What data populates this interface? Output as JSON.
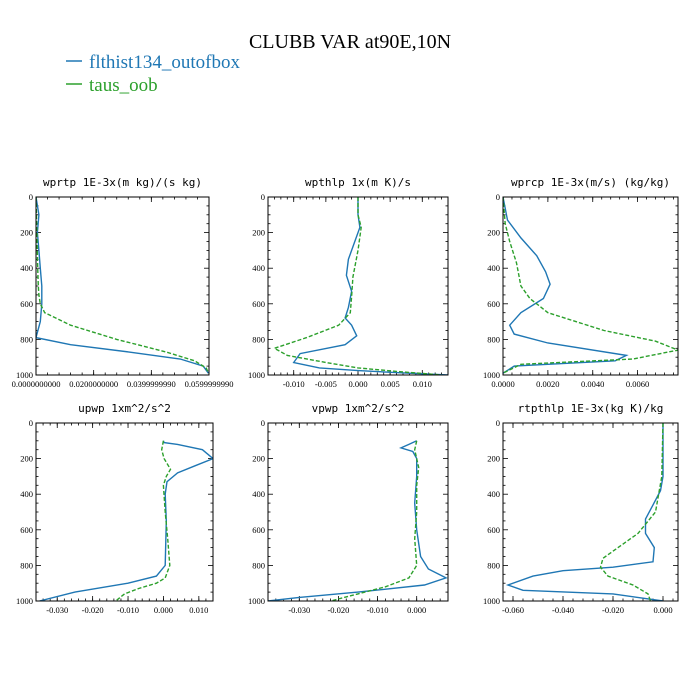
{
  "title": "CLUBB VAR at90E,10N",
  "legend": [
    {
      "label": "flthist134_outofbox",
      "color": "#1f77b4",
      "dash": "solid"
    },
    {
      "label": "taus_oob",
      "color": "#2ca02c",
      "dash": "dashed"
    }
  ],
  "chart_data": [
    {
      "type": "line",
      "title": "wprtp  1E-3x(m kg)/(s kg)",
      "xlim": [
        0.0,
        0.059999999
      ],
      "ylim": [
        1000,
        0
      ],
      "xticks": [
        0.0,
        0.02,
        0.04,
        0.06
      ],
      "xtick_labels": [
        "0.0000000000",
        "0.0200000000",
        "0.0399999990",
        "0.0599999990"
      ],
      "yticks": [
        0,
        200,
        400,
        600,
        800,
        1000
      ],
      "ytick_labels": [
        "0",
        "200",
        "400",
        "600",
        "800",
        "1000"
      ],
      "series": [
        {
          "name": "flthist134_outofbox",
          "x": [
            0.0,
            0.001,
            0.0005,
            0.001,
            0.0015,
            0.002,
            0.002,
            0.0015,
            0.0,
            0.012,
            0.032,
            0.05,
            0.058,
            0.0598
          ],
          "y": [
            0,
            100,
            200,
            300,
            400,
            500,
            600,
            700,
            790,
            830,
            870,
            910,
            950,
            990
          ]
        },
        {
          "name": "taus_oob",
          "x": [
            0.0,
            0.0003,
            0.0006,
            0.0008,
            0.001,
            0.0015,
            0.003,
            0.012,
            0.028,
            0.045,
            0.055,
            0.059,
            0.0599
          ],
          "y": [
            0,
            200,
            400,
            500,
            550,
            600,
            650,
            720,
            800,
            870,
            920,
            960,
            990
          ]
        }
      ]
    },
    {
      "type": "line",
      "title": "wpthlp  1x(m K)/s",
      "xlim": [
        -0.014,
        0.014
      ],
      "ylim": [
        1000,
        0
      ],
      "xticks": [
        -0.01,
        -0.005,
        0.0,
        0.005,
        0.01
      ],
      "xtick_labels": [
        "-0.010",
        "-0.005",
        "0.000",
        "0.005",
        "0.010"
      ],
      "yticks": [
        0,
        200,
        400,
        600,
        800,
        1000
      ],
      "ytick_labels": [
        "0",
        "200",
        "400",
        "600",
        "800",
        "1000"
      ],
      "series": [
        {
          "name": "flthist134_outofbox",
          "x": [
            0.0,
            0.0,
            0.0003,
            -0.0005,
            -0.0015,
            -0.0018,
            -0.001,
            -0.0015,
            -0.002,
            -0.001,
            -0.0002,
            -0.002,
            -0.009,
            -0.01,
            -0.006,
            0.0,
            0.008,
            0.014
          ],
          "y": [
            0,
            100,
            170,
            250,
            350,
            440,
            530,
            620,
            680,
            720,
            780,
            830,
            880,
            930,
            960,
            975,
            990,
            1000
          ]
        },
        {
          "name": "taus_oob",
          "x": [
            0.0,
            0.0,
            0.0005,
            0.0,
            -0.0008,
            -0.001,
            -0.0012,
            -0.003,
            -0.008,
            -0.013,
            -0.011,
            -0.005,
            0.0,
            0.006,
            0.013
          ],
          "y": [
            0,
            100,
            170,
            300,
            450,
            560,
            650,
            720,
            790,
            850,
            890,
            930,
            960,
            980,
            1000
          ]
        }
      ]
    },
    {
      "type": "line",
      "title": "wprcp  1E-3x(m/s) (kg/kg)",
      "xlim": [
        0.0,
        0.0078
      ],
      "ylim": [
        1000,
        0
      ],
      "xticks": [
        0.0,
        0.002,
        0.004,
        0.006
      ],
      "xtick_labels": [
        "0.0000",
        "0.0020",
        "0.0040",
        "0.0060"
      ],
      "yticks": [
        0,
        200,
        400,
        600,
        800,
        1000
      ],
      "ytick_labels": [
        "0",
        "200",
        "400",
        "600",
        "800",
        "1000"
      ],
      "series": [
        {
          "name": "flthist134_outofbox",
          "x": [
            0.0,
            0.0002,
            0.0008,
            0.0015,
            0.0019,
            0.0021,
            0.0018,
            0.0008,
            0.0003,
            0.0005,
            0.002,
            0.0055,
            0.005,
            0.0005,
            0.0
          ],
          "y": [
            0,
            130,
            230,
            330,
            420,
            490,
            570,
            650,
            720,
            770,
            820,
            890,
            920,
            950,
            990
          ]
        },
        {
          "name": "taus_oob",
          "x": [
            0.0,
            0.0001,
            0.0003,
            0.0006,
            0.0008,
            0.0012,
            0.002,
            0.0045,
            0.0068,
            0.0078,
            0.0058,
            0.0008,
            0.0
          ],
          "y": [
            0,
            150,
            250,
            370,
            500,
            570,
            650,
            750,
            810,
            860,
            910,
            940,
            990
          ]
        }
      ]
    },
    {
      "type": "line",
      "title": "upwp  1xm^2/s^2",
      "xlim": [
        -0.036,
        0.014
      ],
      "ylim": [
        1000,
        0
      ],
      "xticks": [
        -0.03,
        -0.02,
        -0.01,
        0.0,
        0.01
      ],
      "xtick_labels": [
        "-0.030",
        "-0.020",
        "-0.010",
        "0.000",
        "0.010"
      ],
      "yticks": [
        0,
        200,
        400,
        600,
        800,
        1000
      ],
      "ytick_labels": [
        "0",
        "200",
        "400",
        "600",
        "800",
        "1000"
      ],
      "series": [
        {
          "name": "flthist134_outofbox",
          "x": [
            0.0,
            0.0002,
            0.004,
            0.011,
            0.014,
            0.009,
            0.004,
            0.001,
            0.0005,
            0.0008,
            0.0005,
            -0.002,
            -0.01,
            -0.025,
            -0.035
          ],
          "y": [
            100,
            110,
            120,
            150,
            200,
            240,
            280,
            330,
            400,
            550,
            800,
            860,
            900,
            950,
            1000
          ]
        },
        {
          "name": "taus_oob",
          "x": [
            0.0,
            -0.0005,
            0.0002,
            0.002,
            0.0008,
            0.0,
            0.0005,
            0.0012,
            0.0018,
            0.0005,
            -0.002,
            -0.007,
            -0.011,
            -0.0135
          ],
          "y": [
            100,
            150,
            200,
            260,
            300,
            350,
            500,
            650,
            800,
            870,
            900,
            930,
            960,
            1000
          ]
        }
      ]
    },
    {
      "type": "line",
      "title": "vpwp  1xm^2/s^2",
      "xlim": [
        -0.038,
        0.008
      ],
      "ylim": [
        1000,
        0
      ],
      "xticks": [
        -0.03,
        -0.02,
        -0.01,
        0.0
      ],
      "xtick_labels": [
        "-0.030",
        "-0.020",
        "-0.010",
        "0.000"
      ],
      "yticks": [
        0,
        200,
        400,
        600,
        800,
        1000
      ],
      "ytick_labels": [
        "0",
        "200",
        "400",
        "600",
        "800",
        "1000"
      ],
      "series": [
        {
          "name": "flthist134_outofbox",
          "x": [
            0.0,
            -0.002,
            -0.004,
            -0.001,
            0.0,
            0.0,
            -0.0005,
            0.0,
            0.001,
            0.003,
            0.0075,
            0.002,
            -0.015,
            -0.03,
            -0.038
          ],
          "y": [
            100,
            120,
            140,
            160,
            200,
            300,
            450,
            600,
            750,
            820,
            870,
            910,
            950,
            980,
            1000
          ]
        },
        {
          "name": "taus_oob",
          "x": [
            0.0,
            -0.0005,
            0.0005,
            0.0,
            0.0,
            -0.0005,
            0.0,
            -0.002,
            -0.008,
            -0.015,
            -0.022
          ],
          "y": [
            100,
            150,
            250,
            350,
            500,
            650,
            800,
            870,
            920,
            960,
            1000
          ]
        }
      ]
    },
    {
      "type": "line",
      "title": "rtpthlp  1E-3x(kg K)/kg",
      "xlim": [
        -0.064,
        0.006
      ],
      "ylim": [
        1000,
        0
      ],
      "xticks": [
        -0.06,
        -0.04,
        -0.02,
        0.0
      ],
      "xtick_labels": [
        "-0.060",
        "-0.040",
        "-0.020",
        "0.000"
      ],
      "yticks": [
        0,
        200,
        400,
        600,
        800,
        1000
      ],
      "ytick_labels": [
        "0",
        "200",
        "400",
        "600",
        "800",
        "1000"
      ],
      "series": [
        {
          "name": "flthist134_outofbox",
          "x": [
            0.0,
            0.0,
            -0.001,
            -0.004,
            -0.007,
            -0.007,
            -0.0035,
            -0.004,
            -0.02,
            -0.04,
            -0.052,
            -0.062,
            -0.056,
            -0.02,
            0.0
          ],
          "y": [
            0,
            300,
            380,
            460,
            540,
            620,
            700,
            780,
            810,
            830,
            860,
            910,
            940,
            960,
            1000
          ]
        },
        {
          "name": "taus_oob",
          "x": [
            0.0,
            -0.0005,
            -0.003,
            -0.01,
            -0.018,
            -0.024,
            -0.025,
            -0.022,
            -0.012,
            -0.006,
            -0.005
          ],
          "y": [
            0,
            300,
            500,
            620,
            700,
            760,
            810,
            860,
            910,
            960,
            1000
          ]
        }
      ]
    }
  ]
}
